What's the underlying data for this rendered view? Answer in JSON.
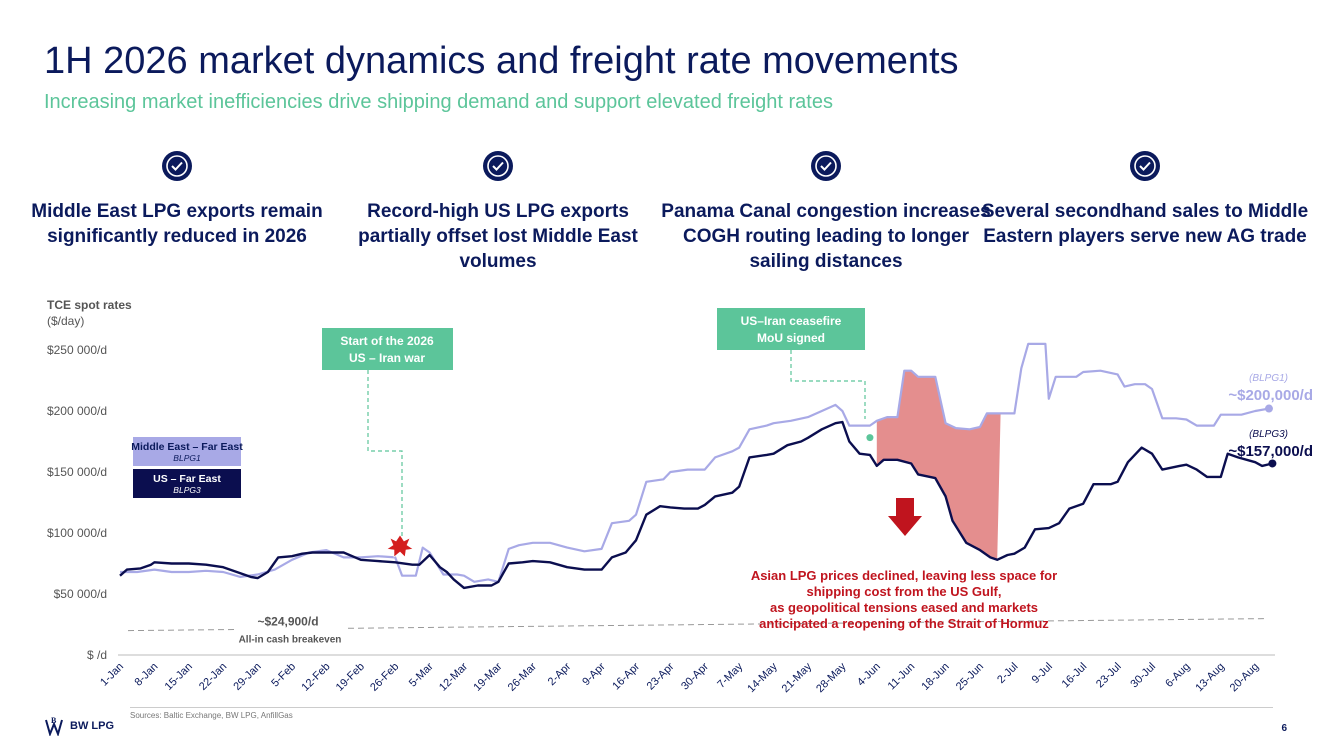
{
  "header": {
    "title": "1H 2026 market dynamics and freight rate movements",
    "subtitle": "Increasing market inefficiencies drive shipping demand and support elevated freight rates"
  },
  "pillars": [
    {
      "text": "Middle East LPG exports remain significantly reduced in 2026",
      "icon": "check-badge-icon"
    },
    {
      "text": "Record-high US LPG exports partially offset lost Middle East volumes",
      "icon": "check-badge-icon"
    },
    {
      "text": "Panama Canal congestion increases COGH routing leading to longer sailing distances",
      "icon": "check-badge-icon"
    },
    {
      "text": "Several secondhand sales to Middle Eastern players serve new AG trade",
      "icon": "check-badge-icon"
    }
  ],
  "chart_data": {
    "type": "line",
    "ylabel_title": "TCE spot rates",
    "ylabel_unit": "($/day)",
    "ylim": [
      0,
      250000
    ],
    "yticks": [
      {
        "v": 0,
        "label": "$ /d"
      },
      {
        "v": 50000,
        "label": "$50 000/d"
      },
      {
        "v": 100000,
        "label": "$100 000/d"
      },
      {
        "v": 150000,
        "label": "$150 000/d"
      },
      {
        "v": 200000,
        "label": "$200 000/d"
      },
      {
        "v": 250000,
        "label": "$250 000/d"
      }
    ],
    "categories": [
      "1-Jan",
      "8-Jan",
      "15-Jan",
      "22-Jan",
      "29-Jan",
      "5-Feb",
      "12-Feb",
      "19-Feb",
      "26-Feb",
      "5-Mar",
      "12-Mar",
      "19-Mar",
      "26-Mar",
      "2-Apr",
      "9-Apr",
      "16-Apr",
      "23-Apr",
      "30-Apr",
      "7-May",
      "14-May",
      "21-May",
      "28-May",
      "4-Jun",
      "11-Jun",
      "18-Jun",
      "25-Jun",
      "2-Jul",
      "9-Jul",
      "16-Jul",
      "23-Jul",
      "30-Jul",
      "6-Aug",
      "13-Aug",
      "20-Aug"
    ],
    "series": [
      {
        "name": "Middle East – Far East",
        "code": "BLPG1",
        "color": "#a8a9e6",
        "values": [
          [
            0,
            68000
          ],
          [
            0.5,
            68000
          ],
          [
            1,
            70000
          ],
          [
            1.5,
            68000
          ],
          [
            2,
            68000
          ],
          [
            2.5,
            69000
          ],
          [
            3,
            68000
          ],
          [
            3.5,
            64000
          ],
          [
            4,
            66000
          ],
          [
            4.5,
            70000
          ],
          [
            5,
            78000
          ],
          [
            5.5,
            84000
          ],
          [
            6,
            86000
          ],
          [
            6.5,
            80000
          ],
          [
            7,
            80000
          ],
          [
            7.5,
            81000
          ],
          [
            8,
            80000
          ],
          [
            8.2,
            65000
          ],
          [
            8.6,
            65000
          ],
          [
            8.8,
            88000
          ],
          [
            9,
            84000
          ],
          [
            9.4,
            66000
          ],
          [
            9.8,
            66000
          ],
          [
            10,
            65000
          ],
          [
            10.3,
            60000
          ],
          [
            10.7,
            62000
          ],
          [
            11,
            60000
          ],
          [
            11.3,
            87000
          ],
          [
            11.6,
            90000
          ],
          [
            12,
            92000
          ],
          [
            12.5,
            92000
          ],
          [
            13,
            88000
          ],
          [
            13.5,
            85000
          ],
          [
            14,
            87000
          ],
          [
            14.3,
            108000
          ],
          [
            14.8,
            110000
          ],
          [
            15,
            115000
          ],
          [
            15.3,
            142000
          ],
          [
            15.8,
            144000
          ],
          [
            16,
            150000
          ],
          [
            16.5,
            152000
          ],
          [
            17,
            152000
          ],
          [
            17.3,
            162000
          ],
          [
            17.8,
            167000
          ],
          [
            18,
            170000
          ],
          [
            18.3,
            185000
          ],
          [
            18.8,
            188000
          ],
          [
            19,
            190000
          ],
          [
            19.5,
            192000
          ],
          [
            20,
            195000
          ],
          [
            20.4,
            200000
          ],
          [
            20.8,
            205000
          ],
          [
            21,
            200000
          ],
          [
            21.2,
            188000
          ],
          [
            21.6,
            188000
          ],
          [
            21.8,
            188000
          ],
          [
            22,
            192000
          ],
          [
            22.3,
            195000
          ],
          [
            22.6,
            195000
          ],
          [
            22.8,
            233000
          ],
          [
            23,
            233000
          ],
          [
            23.2,
            228000
          ],
          [
            23.7,
            228000
          ],
          [
            24,
            190000
          ],
          [
            24.3,
            186000
          ],
          [
            24.7,
            185000
          ],
          [
            25,
            187000
          ],
          [
            25.2,
            198000
          ],
          [
            25.6,
            198000
          ],
          [
            26,
            198000
          ],
          [
            26.2,
            235000
          ],
          [
            26.4,
            255000
          ],
          [
            26.9,
            255000
          ],
          [
            27,
            210000
          ],
          [
            27.2,
            228000
          ],
          [
            27.8,
            228000
          ],
          [
            28,
            232000
          ],
          [
            28.5,
            233000
          ],
          [
            29,
            230000
          ],
          [
            29.2,
            220000
          ],
          [
            29.5,
            222000
          ],
          [
            29.8,
            222000
          ],
          [
            30,
            218000
          ],
          [
            30.3,
            194000
          ],
          [
            30.7,
            194000
          ],
          [
            31,
            193000
          ],
          [
            31.3,
            188000
          ],
          [
            31.8,
            188000
          ],
          [
            32,
            197000
          ],
          [
            32.4,
            197000
          ],
          [
            32.6,
            197000
          ],
          [
            33,
            200000
          ],
          [
            33.4,
            202000
          ]
        ]
      },
      {
        "name": "US – Far East",
        "code": "BLPG3",
        "color": "#0b0e4f",
        "values": [
          [
            0,
            65000
          ],
          [
            0.2,
            70000
          ],
          [
            0.6,
            71000
          ],
          [
            0.9,
            74000
          ],
          [
            1,
            76000
          ],
          [
            1.5,
            75000
          ],
          [
            2,
            75000
          ],
          [
            2.5,
            74000
          ],
          [
            3,
            72000
          ],
          [
            3.5,
            67000
          ],
          [
            3.8,
            64000
          ],
          [
            4,
            63000
          ],
          [
            4.3,
            68000
          ],
          [
            4.6,
            80000
          ],
          [
            5,
            81000
          ],
          [
            5.3,
            83000
          ],
          [
            5.6,
            84000
          ],
          [
            6,
            84000
          ],
          [
            6.5,
            84000
          ],
          [
            7,
            78000
          ],
          [
            7.5,
            77000
          ],
          [
            8,
            76000
          ],
          [
            8.5,
            74000
          ],
          [
            8.7,
            74000
          ],
          [
            9,
            82000
          ],
          [
            9.3,
            72000
          ],
          [
            9.5,
            68000
          ],
          [
            9.7,
            62000
          ],
          [
            10,
            55000
          ],
          [
            10.4,
            57000
          ],
          [
            10.8,
            57000
          ],
          [
            11,
            60000
          ],
          [
            11.3,
            75000
          ],
          [
            11.7,
            76000
          ],
          [
            12,
            77000
          ],
          [
            12.5,
            76000
          ],
          [
            13,
            72000
          ],
          [
            13.5,
            70000
          ],
          [
            14,
            70000
          ],
          [
            14.3,
            80000
          ],
          [
            14.7,
            84000
          ],
          [
            15,
            94000
          ],
          [
            15.3,
            115000
          ],
          [
            15.7,
            122000
          ],
          [
            16,
            121000
          ],
          [
            16.4,
            120000
          ],
          [
            16.8,
            120000
          ],
          [
            17,
            123000
          ],
          [
            17.3,
            130000
          ],
          [
            17.8,
            133000
          ],
          [
            18,
            138000
          ],
          [
            18.3,
            162000
          ],
          [
            18.8,
            164000
          ],
          [
            19,
            165000
          ],
          [
            19.4,
            172000
          ],
          [
            19.8,
            175000
          ],
          [
            20,
            178000
          ],
          [
            20.4,
            185000
          ],
          [
            20.8,
            190000
          ],
          [
            21,
            191000
          ],
          [
            21.2,
            175000
          ],
          [
            21.5,
            165000
          ],
          [
            21.8,
            164000
          ],
          [
            22,
            155000
          ],
          [
            22.2,
            160000
          ],
          [
            22.6,
            160000
          ],
          [
            23,
            157000
          ],
          [
            23.2,
            148000
          ],
          [
            23.7,
            145000
          ],
          [
            24,
            130000
          ],
          [
            24.2,
            110000
          ],
          [
            24.6,
            92000
          ],
          [
            25,
            86000
          ],
          [
            25.3,
            80000
          ],
          [
            25.5,
            78000
          ],
          [
            25.8,
            82000
          ],
          [
            26,
            83000
          ],
          [
            26.3,
            88000
          ],
          [
            26.6,
            103000
          ],
          [
            27,
            104000
          ],
          [
            27.3,
            108000
          ],
          [
            27.6,
            120000
          ],
          [
            28,
            124000
          ],
          [
            28.3,
            140000
          ],
          [
            28.8,
            140000
          ],
          [
            29,
            142000
          ],
          [
            29.3,
            158000
          ],
          [
            29.7,
            170000
          ],
          [
            30,
            165000
          ],
          [
            30.3,
            152000
          ],
          [
            30.8,
            155000
          ],
          [
            31,
            156000
          ],
          [
            31.3,
            152000
          ],
          [
            31.6,
            146000
          ],
          [
            32,
            146000
          ],
          [
            32.2,
            165000
          ],
          [
            32.5,
            162000
          ],
          [
            33,
            158000
          ],
          [
            33.2,
            155000
          ],
          [
            33.5,
            157000
          ]
        ]
      }
    ],
    "shaded_region": {
      "from": 22,
      "to": 25.6,
      "color": "#e48e8e"
    },
    "breakeven": {
      "value": 24900,
      "label": "~$24,900/d",
      "sublabel": "All-in cash breakeven"
    },
    "legend": [
      {
        "label": "Middle East – Far East",
        "code": "BLPG1",
        "bg": "#a8a9e6",
        "fg": "#0b1a5c"
      },
      {
        "label": "US – Far East",
        "code": "BLPG3",
        "bg": "#0b0e4f",
        "fg": "#ffffff"
      }
    ],
    "end_labels": [
      {
        "code": "(BLPG1)",
        "value": "~$200,000/d",
        "color": "#a8a9e6"
      },
      {
        "code": "(BLPG3)",
        "value": "~$157,000/d",
        "color": "#0b0e4f"
      }
    ],
    "annotations": [
      {
        "id": "war",
        "text": [
          "Start of the 2026",
          "US – Iran war"
        ],
        "x_index": 8.7
      },
      {
        "id": "ceasefire",
        "text": [
          "US–Iran ceasefire",
          "MoU signed"
        ],
        "x_index": 21.8
      }
    ],
    "callout": {
      "text": [
        "Asian LPG prices declined, leaving less space for",
        "shipping cost from the US Gulf,",
        "as geopolitical tensions eased and markets",
        "anticipated a reopening of the Strait of Hormuz"
      ],
      "color": "#c0141e"
    }
  },
  "footer": {
    "sources": "Sources: Baltic Exchange, BW LPG, AnfillGas",
    "logo_text": "BW LPG",
    "page": "6"
  }
}
